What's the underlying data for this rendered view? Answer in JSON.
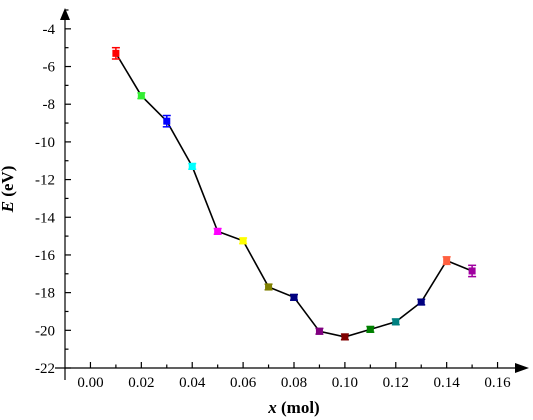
{
  "chart_data": {
    "type": "line",
    "xlabel": "x (mol)",
    "xlabel_var": "x",
    "xlabel_unit": " (mol)",
    "ylabel": "E (eV)",
    "ylabel_var": "E",
    "ylabel_unit": " (eV)",
    "xlim": [
      -0.01,
      0.17
    ],
    "ylim": [
      -22,
      -3
    ],
    "xticks": [
      0.0,
      0.02,
      0.04,
      0.06,
      0.08,
      0.1,
      0.12,
      0.14,
      0.16
    ],
    "xtick_labels": [
      "0.00",
      "0.02",
      "0.04",
      "0.06",
      "0.08",
      "0.10",
      "0.12",
      "0.14",
      "0.16"
    ],
    "yticks": [
      -22,
      -20,
      -18,
      -16,
      -14,
      -12,
      -10,
      -8,
      -6,
      -4
    ],
    "ytick_labels": [
      "-22",
      "-20",
      "-18",
      "-16",
      "-14",
      "-12",
      "-10",
      "-8",
      "-6",
      "-4"
    ],
    "grid": false,
    "series": [
      {
        "x": [
          0.01,
          0.02,
          0.03,
          0.04,
          0.05,
          0.06,
          0.07,
          0.08,
          0.09,
          0.1,
          0.11,
          0.12,
          0.13,
          0.14,
          0.15
        ],
        "y": [
          -5.3,
          -7.55,
          -8.9,
          -11.3,
          -14.75,
          -15.25,
          -17.7,
          -18.25,
          -20.05,
          -20.35,
          -19.95,
          -19.55,
          -18.5,
          -16.3,
          -16.85
        ],
        "err": [
          0.3,
          0.15,
          0.3,
          0.15,
          0.15,
          0.15,
          0.15,
          0.15,
          0.15,
          0.15,
          0.15,
          0.15,
          0.15,
          0.2,
          0.3
        ],
        "marker_colors": [
          "#ff0000",
          "#33ee33",
          "#0000ff",
          "#00ffff",
          "#ff00ff",
          "#ffff00",
          "#808000",
          "#000080",
          "#800080",
          "#800000",
          "#008000",
          "#008080",
          "#000080",
          "#ff6040",
          "#a000a0"
        ]
      }
    ]
  }
}
